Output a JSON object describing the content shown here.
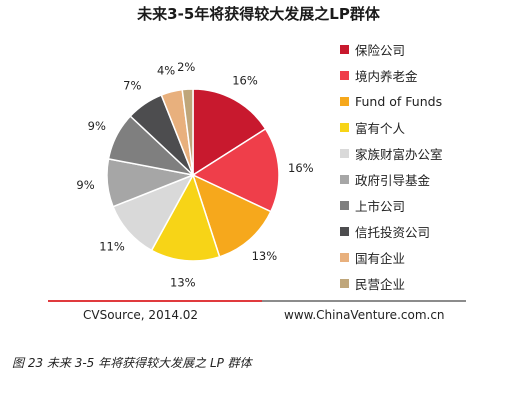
{
  "chart_data": {
    "type": "pie",
    "title": "未来3-5年将获得较大发展之LP群体",
    "legend_position": "right",
    "slices": [
      {
        "label": "保险公司",
        "value": 16,
        "display": "16%",
        "color": "#c8192e"
      },
      {
        "label": "境内养老金",
        "value": 16,
        "display": "16%",
        "color": "#ef3e4a"
      },
      {
        "label": "Fund of Funds",
        "value": 13,
        "display": "13%",
        "color": "#f6a81c"
      },
      {
        "label": "富有个人",
        "value": 13,
        "display": "13%",
        "color": "#f7d417"
      },
      {
        "label": "家族财富办公室",
        "value": 11,
        "display": "11%",
        "color": "#d9d9d9"
      },
      {
        "label": "政府引导基金",
        "value": 9,
        "display": "9%",
        "color": "#a6a6a6"
      },
      {
        "label": "上市公司",
        "value": 9,
        "display": "9%",
        "color": "#7f7f7f"
      },
      {
        "label": "信托投资公司",
        "value": 7,
        "display": "7%",
        "color": "#4d4d4f"
      },
      {
        "label": "国有企业",
        "value": 4,
        "display": "4%",
        "color": "#e8b07d"
      },
      {
        "label": "民营企业",
        "value": 2,
        "display": "2%",
        "color": "#bfa67a"
      }
    ]
  },
  "source_left": "CVSource, 2014.02",
  "source_right": "www.ChinaVenture.com.cn",
  "caption": "图 23 未来 3-5 年将获得较大发展之 LP 群体",
  "colors": {
    "rule_red": "#e03a3e",
    "rule_grey": "#8c8c8c"
  }
}
